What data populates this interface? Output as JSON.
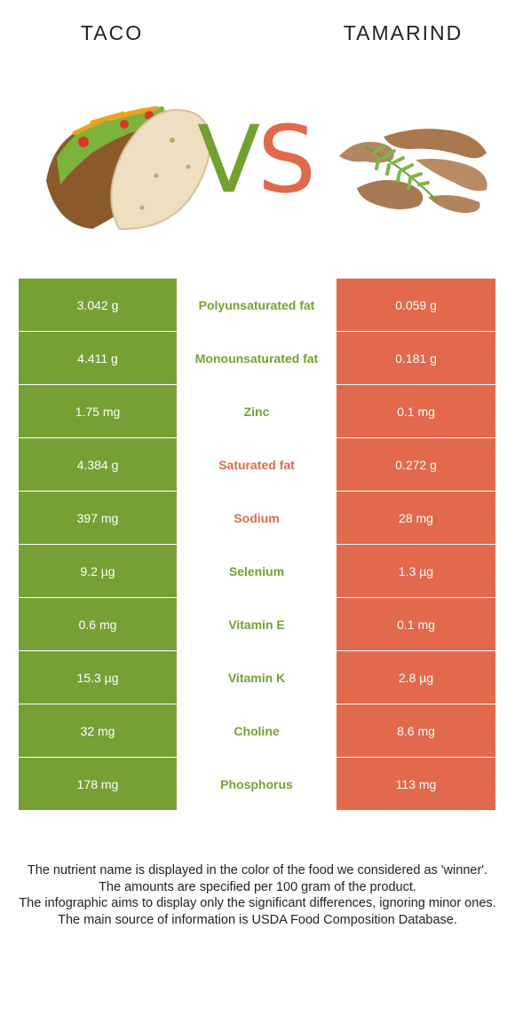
{
  "header": {
    "left_title": "TACO",
    "right_title": "TAMARIND",
    "vs_v": "V",
    "vs_s": "S",
    "left_image": "taco-image",
    "right_image": "tamarind-image"
  },
  "colors": {
    "left_accent": "#76a034",
    "right_accent": "#e2694b"
  },
  "rows": [
    {
      "left": "3.042 g",
      "nutrient": "Polyunsaturated fat",
      "right": "0.059 g",
      "winner": "left"
    },
    {
      "left": "4.411 g",
      "nutrient": "Monounsaturated fat",
      "right": "0.181 g",
      "winner": "left"
    },
    {
      "left": "1.75 mg",
      "nutrient": "Zinc",
      "right": "0.1 mg",
      "winner": "left"
    },
    {
      "left": "4.384 g",
      "nutrient": "Saturated fat",
      "right": "0.272 g",
      "winner": "right"
    },
    {
      "left": "397 mg",
      "nutrient": "Sodium",
      "right": "28 mg",
      "winner": "right"
    },
    {
      "left": "9.2 µg",
      "nutrient": "Selenium",
      "right": "1.3 µg",
      "winner": "left"
    },
    {
      "left": "0.6 mg",
      "nutrient": "Vitamin E",
      "right": "0.1 mg",
      "winner": "left"
    },
    {
      "left": "15.3 µg",
      "nutrient": "Vitamin K",
      "right": "2.8 µg",
      "winner": "left"
    },
    {
      "left": "32 mg",
      "nutrient": "Choline",
      "right": "8.6 mg",
      "winner": "left"
    },
    {
      "left": "178 mg",
      "nutrient": "Phosphorus",
      "right": "113 mg",
      "winner": "left"
    }
  ],
  "footer": {
    "line1": "The nutrient name is displayed in the color of the food we considered as 'winner'.",
    "line2": "The amounts are specified per 100 gram of the product.",
    "line3": "The infographic aims to display only the significant differences, ignoring minor ones.",
    "line4": "The main source of information is USDA Food Composition Database."
  }
}
